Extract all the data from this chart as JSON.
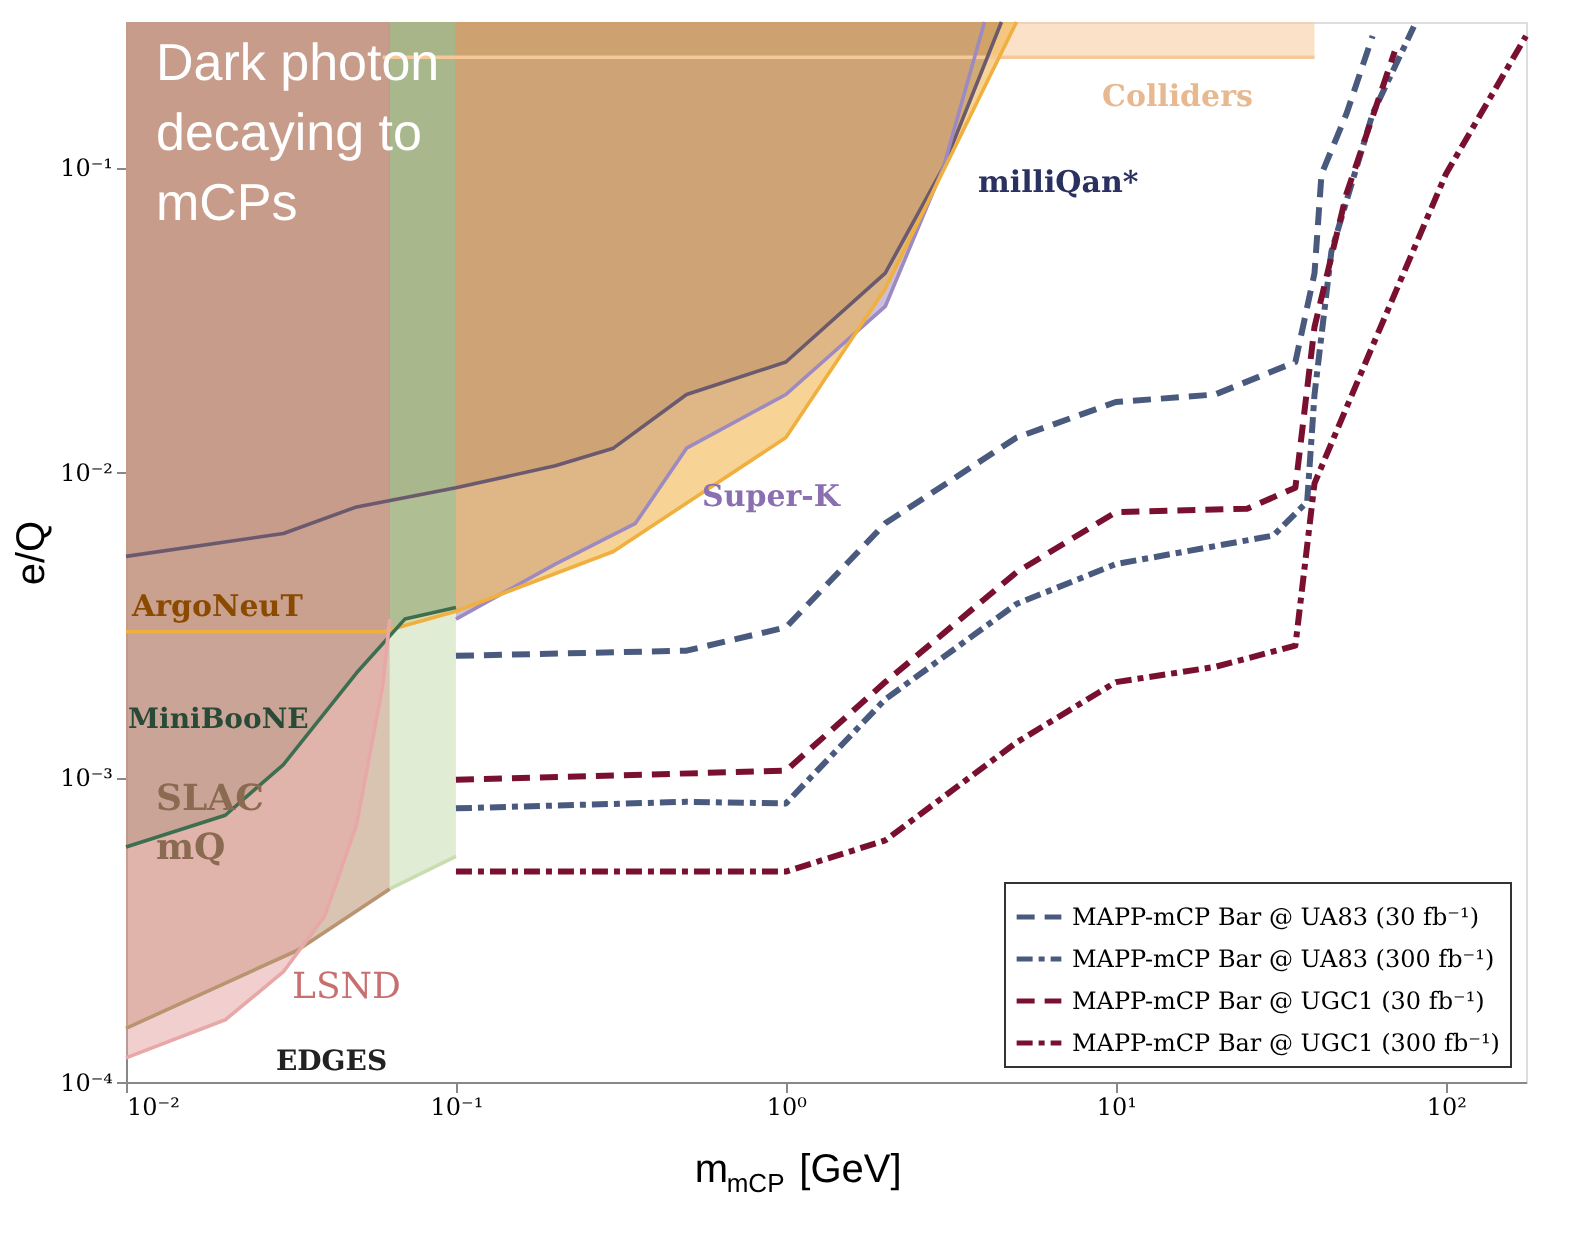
{
  "chart_data": {
    "type": "line",
    "xlabel": "m$_{mCP}$ [GeV]",
    "ylabel": "e/Q",
    "log": "xy",
    "grid": false,
    "legend": "bottom right",
    "xlim": [
      0.01,
      175
    ],
    "ylim": [
      0.0001,
      0.3
    ],
    "xticks": [
      {
        "value": 0.01,
        "label": "10⁻²"
      },
      {
        "value": 0.1,
        "label": "10⁻¹"
      },
      {
        "value": 1,
        "label": "10⁰"
      },
      {
        "value": 10,
        "label": "10¹"
      },
      {
        "value": 100,
        "label": "10²"
      }
    ],
    "yticks": [
      {
        "value": 0.0001,
        "label": "10⁻⁴"
      },
      {
        "value": 0.001,
        "label": "10⁻³"
      },
      {
        "value": 0.01,
        "label": "10⁻²"
      },
      {
        "value": 0.1,
        "label": "10⁻¹"
      }
    ],
    "series": [
      {
        "color": "#f5c89a",
        "x": [
          0.06,
          40
        ],
        "values": [
          0.23,
          0.23
        ],
        "lower": [
          0.23,
          0.23
        ],
        "upper": [
          0.3,
          0.3
        ]
      },
      {
        "color": "#6b5a6e",
        "x": [
          0.01,
          0.03,
          0.05,
          0.1,
          0.2,
          0.3,
          0.5,
          1,
          2,
          3,
          4.5
        ],
        "values": [
          0.0053,
          0.0063,
          0.0077,
          0.0089,
          0.0105,
          0.012,
          0.018,
          0.023,
          0.045,
          0.1,
          0.3
        ],
        "lower": [
          0.0053,
          0.0063,
          0.0077,
          0.0089,
          0.0105,
          0.012,
          0.018,
          0.023,
          0.045,
          0.1,
          0.3
        ],
        "upper": [
          0.3,
          0.3,
          0.3,
          0.3,
          0.3,
          0.3,
          0.3,
          0.3,
          0.3,
          0.3,
          0.3
        ]
      },
      {
        "color": "#9d8ac0",
        "x": [
          0.1,
          0.2,
          0.35,
          0.5,
          1,
          2,
          3,
          4
        ],
        "values": [
          0.0033,
          0.005,
          0.0068,
          0.012,
          0.018,
          0.035,
          0.1,
          0.3
        ],
        "lower": [
          0.0033,
          0.005,
          0.0068,
          0.012,
          0.018,
          0.035,
          0.1,
          0.3
        ],
        "upper": [
          0.3,
          0.3,
          0.3,
          0.3,
          0.3,
          0.3,
          0.3,
          0.3
        ]
      },
      {
        "color": "#f0b040",
        "x": [
          0.01,
          0.06,
          0.1,
          0.3,
          1,
          2,
          5
        ],
        "values": [
          0.003,
          0.003,
          0.0035,
          0.0055,
          0.013,
          0.04,
          0.3
        ],
        "lower": [
          0.003,
          0.003,
          0.0035,
          0.0055,
          0.013,
          0.04,
          0.3
        ],
        "upper": [
          0.3,
          0.3,
          0.3,
          0.3,
          0.3,
          0.3,
          0.3
        ]
      },
      {
        "color": "#3e6e50",
        "x": [
          0.01,
          0.02,
          0.03,
          0.05,
          0.07,
          0.1
        ],
        "values": [
          0.00059,
          0.00075,
          0.0011,
          0.0022,
          0.0033,
          0.0036
        ],
        "lower": [
          0.00059,
          0.00075,
          0.0011,
          0.0022,
          0.0033,
          0.0036
        ],
        "upper": [
          0.3,
          0.3,
          0.3,
          0.3,
          0.3,
          0.3
        ]
      },
      {
        "color": "#c8ddb0",
        "x": [
          0.063,
          0.1
        ],
        "values": [
          0.00043,
          0.00055
        ],
        "lower": [
          0.00043,
          0.00055
        ],
        "upper": [
          0.3,
          0.3
        ]
      },
      {
        "color": "#b89470",
        "x": [
          0.01,
          0.033,
          0.063
        ],
        "values": [
          0.00015,
          0.00027,
          0.00043
        ],
        "lower": [
          0.00015,
          0.00027,
          0.00043
        ],
        "upper": [
          0.3,
          0.3,
          0.3
        ]
      },
      {
        "color": "#e8a8a8",
        "x": [
          0.01,
          0.02,
          0.03,
          0.04,
          0.05,
          0.06,
          0.063
        ],
        "values": [
          0.00012,
          0.00016,
          0.00023,
          0.00035,
          0.0007,
          0.002,
          0.0033
        ],
        "lower": [
          0.00012,
          0.00016,
          0.00023,
          0.00035,
          0.0007,
          0.002,
          0.0033
        ],
        "upper": [
          0.3,
          0.3,
          0.3,
          0.3,
          0.3,
          0.3,
          0.3
        ]
      },
      {
        "name": "MAPP-mCP Bar @ UA83 (30 fb⁻¹)",
        "color": "#4a5a7e",
        "line_style": "dashed",
        "x": [
          0.1,
          0.5,
          1,
          2,
          5,
          10,
          20,
          35,
          40,
          42,
          50,
          60
        ],
        "values": [
          0.0025,
          0.0026,
          0.0031,
          0.0068,
          0.013,
          0.017,
          0.018,
          0.023,
          0.045,
          0.095,
          0.15,
          0.27
        ]
      },
      {
        "name": "MAPP-mCP Bar @ UA83 (300 fb⁻¹)",
        "color": "#4a5a7e",
        "line_style": "dashdot",
        "x": [
          0.1,
          0.5,
          1,
          2,
          5,
          10,
          30,
          38,
          40,
          45,
          60,
          80
        ],
        "values": [
          0.00079,
          0.00083,
          0.00082,
          0.0018,
          0.0037,
          0.005,
          0.0062,
          0.008,
          0.018,
          0.053,
          0.15,
          0.29
        ]
      },
      {
        "name": "MAPP-mCP Bar @ UGC1 (30 fb⁻¹)",
        "color": "#7a1030",
        "line_style": "dashed",
        "x": [
          0.1,
          1,
          2,
          5,
          10,
          25,
          35,
          40,
          50,
          70
        ],
        "values": [
          0.00098,
          0.00105,
          0.00205,
          0.0047,
          0.0074,
          0.0076,
          0.0089,
          0.03,
          0.082,
          0.24
        ]
      },
      {
        "name": "MAPP-mCP Bar @ UGC1 (300 fb⁻¹)",
        "color": "#7a1030",
        "line_style": "dashdot",
        "x": [
          0.1,
          1,
          2,
          5,
          10,
          20,
          35,
          40,
          60,
          100,
          175
        ],
        "values": [
          0.00049,
          0.00049,
          0.00062,
          0.0013,
          0.00205,
          0.0023,
          0.0027,
          0.0092,
          0.026,
          0.095,
          0.27
        ]
      }
    ],
    "annotations": [
      "Dark photon\ndecaying to\nmCPs",
      "Colliders",
      "milliQan*",
      "Super-K",
      "ArgoNeuT",
      "MiniBooNE",
      "SLAC\nmQ",
      "LSND",
      "EDGES"
    ]
  }
}
